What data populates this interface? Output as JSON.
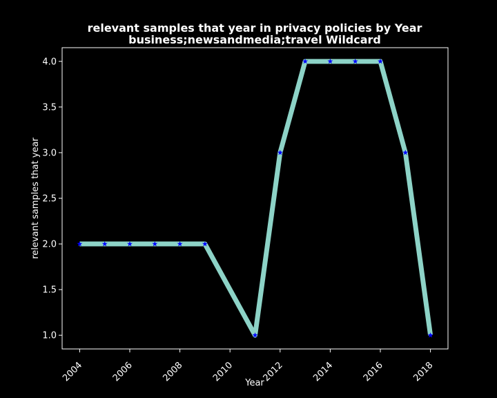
{
  "chart_data": {
    "type": "line",
    "title_lines": [
      "relevant samples that year in privacy policies by Year",
      "business;newsandmedia;travel Wildcard"
    ],
    "xlabel": "Year",
    "ylabel": "relevant samples that year",
    "x": [
      2004,
      2005,
      2006,
      2007,
      2008,
      2009,
      2011,
      2012,
      2013,
      2014,
      2015,
      2016,
      2017,
      2018
    ],
    "y": [
      2,
      2,
      2,
      2,
      2,
      2,
      1,
      3,
      4,
      4,
      4,
      4,
      3,
      1
    ],
    "xlim": [
      2003.3,
      2018.7
    ],
    "ylim": [
      0.85,
      4.15
    ],
    "xticks": [
      "2004",
      "2006",
      "2008",
      "2010",
      "2012",
      "2014",
      "2016",
      "2018"
    ],
    "yticks": [
      "1.0",
      "1.5",
      "2.0",
      "2.5",
      "3.0",
      "3.5",
      "4.0"
    ],
    "grid": false,
    "colors": {
      "line": "#8dd3c7",
      "marker": "#0000ff",
      "background": "#000000",
      "axes": "#ffffff"
    },
    "marker": "star"
  }
}
